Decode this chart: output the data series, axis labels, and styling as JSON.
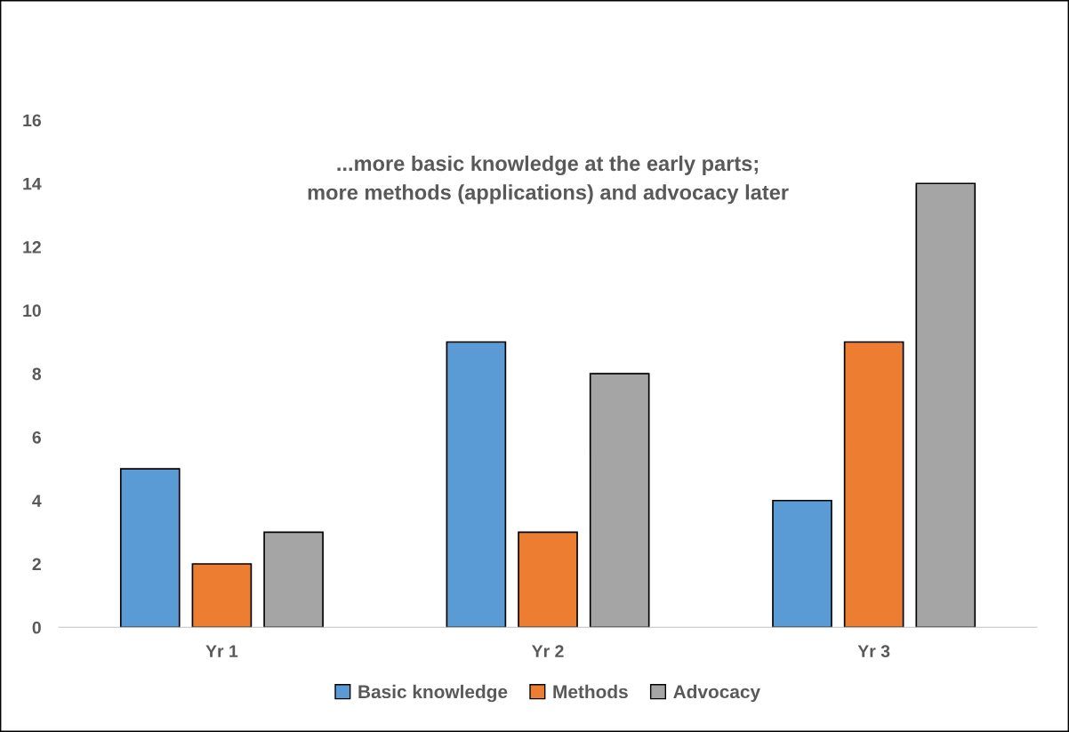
{
  "chart_data": {
    "type": "bar",
    "title": "...more basic knowledge at the early parts;\nmore methods (applications) and advocacy later",
    "categories": [
      "Yr 1",
      "Yr 2",
      "Yr 3"
    ],
    "series": [
      {
        "name": "Basic knowledge",
        "color": "#5b9bd5",
        "values": [
          5,
          9,
          4
        ]
      },
      {
        "name": "Methods",
        "color": "#ed7d31",
        "values": [
          2,
          3,
          9
        ]
      },
      {
        "name": "Advocacy",
        "color": "#a5a5a5",
        "values": [
          3,
          8,
          14
        ]
      }
    ],
    "ylim": [
      0,
      16
    ],
    "yticks": [
      0,
      2,
      4,
      6,
      8,
      10,
      12,
      14,
      16
    ],
    "grid": false,
    "legend": "bottom"
  }
}
